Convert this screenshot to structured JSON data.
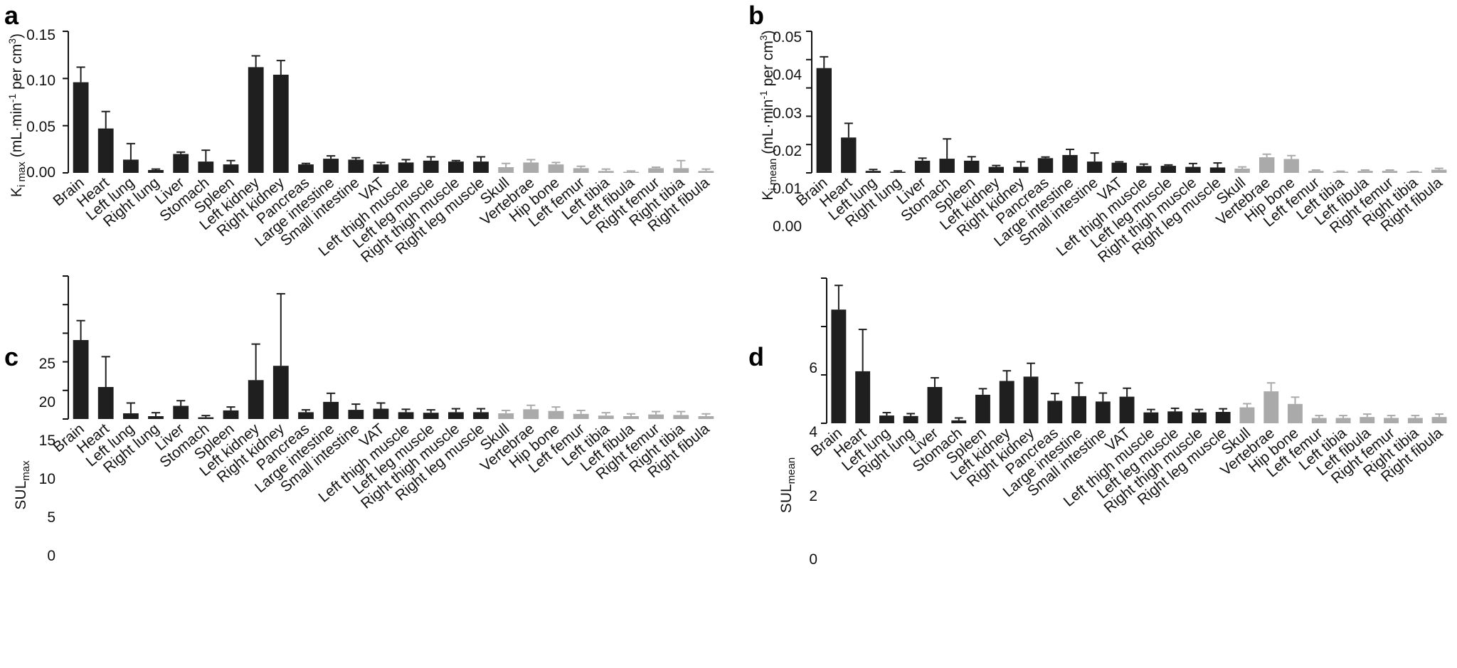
{
  "colors": {
    "tissue": "#1f1f1f",
    "bone": "#aaaaaa",
    "axis": "#111111"
  },
  "panels": [
    {
      "label": "a",
      "ylabel": {
        "main": "K",
        "sub": "i max",
        "unit_pre": "(mL·min",
        "sup1": "-1",
        "unit_mid": " per cm",
        "sup2": "3",
        "unit_post": ")"
      },
      "ytick_labels": [
        "0.00",
        "0.05",
        "0.10",
        "0.15"
      ]
    },
    {
      "label": "b",
      "ylabel": {
        "main": "K",
        "sub": "i mean",
        "unit_pre": "(mL·min",
        "sup1": "-1",
        "unit_mid": " per cm",
        "sup2": "3",
        "unit_post": ")"
      },
      "ytick_labels": [
        "0.00",
        "0.01",
        "0.02",
        "0.03",
        "0.04",
        "0.05"
      ]
    },
    {
      "label": "c",
      "ylabel": {
        "main": "SUL",
        "sub": "max"
      },
      "ytick_labels": [
        "0",
        "5",
        "10",
        "15",
        "20",
        "25"
      ]
    },
    {
      "label": "d",
      "ylabel": {
        "main": "SUL",
        "sub": "mean"
      },
      "ytick_labels": [
        "0",
        "2",
        "4",
        "6"
      ]
    }
  ],
  "chart_data": [
    {
      "type": "bar",
      "panel": "a",
      "title": "",
      "xlabel": "",
      "ylabel": "Ki max (mL·min-1 per cm3)",
      "ylim": [
        0,
        0.15
      ],
      "yticks": [
        0,
        0.05,
        0.1,
        0.15
      ],
      "categories": [
        "Brain",
        "Heart",
        "Left lung",
        "Right lung",
        "Liver",
        "Stomach",
        "Spleen",
        "Left kidney",
        "Right kidney",
        "Pancreas",
        "Large intestine",
        "Small intestine",
        "VAT",
        "Left thigh muscle",
        "Left leg muscle",
        "Right thigh muscle",
        "Right leg muscle",
        "Skull",
        "Vertebrae",
        "Hip bone",
        "Left femur",
        "Left tibia",
        "Left fibula",
        "Right femur",
        "Right tibia",
        "Right fibula"
      ],
      "values": [
        0.096,
        0.047,
        0.014,
        0.003,
        0.02,
        0.012,
        0.009,
        0.112,
        0.104,
        0.009,
        0.015,
        0.014,
        0.009,
        0.011,
        0.013,
        0.012,
        0.012,
        0.006,
        0.011,
        0.009,
        0.005,
        0.002,
        0.001,
        0.005,
        0.005,
        0.002
      ],
      "errors": [
        0.016,
        0.018,
        0.017,
        0.001,
        0.002,
        0.012,
        0.004,
        0.012,
        0.015,
        0.001,
        0.003,
        0.002,
        0.002,
        0.003,
        0.004,
        0.001,
        0.005,
        0.004,
        0.003,
        0.002,
        0.002,
        0.002,
        0.001,
        0.001,
        0.008,
        0.002
      ],
      "bone_start_index": 17
    },
    {
      "type": "bar",
      "panel": "b",
      "title": "",
      "xlabel": "",
      "ylabel": "Ki mean (mL·min-1 per cm3)",
      "ylim": [
        0,
        0.05
      ],
      "yticks": [
        0,
        0.01,
        0.02,
        0.03,
        0.04,
        0.05
      ],
      "categories": [
        "Brain",
        "Heart",
        "Left lung",
        "Right lung",
        "Liver",
        "Stomach",
        "Spleen",
        "Left kidney",
        "Right kidney",
        "Pancreas",
        "Large intestine",
        "Small intestine",
        "VAT",
        "Left thigh muscle",
        "Left leg muscle",
        "Right thigh muscle",
        "Right leg muscle",
        "Skull",
        "Vertebrae",
        "Hip bone",
        "Left femur",
        "Left tibia",
        "Left fibula",
        "Right femur",
        "Right tibia",
        "Right fibula"
      ],
      "values": [
        0.037,
        0.0125,
        0.0007,
        0.0004,
        0.0043,
        0.005,
        0.0043,
        0.0021,
        0.0021,
        0.0052,
        0.0063,
        0.004,
        0.0036,
        0.0024,
        0.0025,
        0.0021,
        0.0019,
        0.0015,
        0.0055,
        0.0049,
        0.0007,
        0.0004,
        0.0007,
        0.0007,
        0.0004,
        0.0011
      ],
      "errors": [
        0.004,
        0.005,
        0.0005,
        0.0003,
        0.0009,
        0.007,
        0.0014,
        0.0005,
        0.0018,
        0.0004,
        0.002,
        0.003,
        0.0003,
        0.0007,
        0.0003,
        0.0012,
        0.0016,
        0.0006,
        0.0011,
        0.0012,
        0.0003,
        0.0002,
        0.0003,
        0.0003,
        0.0001,
        0.0005
      ],
      "bone_start_index": 17
    },
    {
      "type": "bar",
      "panel": "c",
      "title": "",
      "xlabel": "",
      "ylabel": "SULmax",
      "ylim": [
        0,
        25
      ],
      "yticks": [
        0,
        5,
        10,
        15,
        20,
        25
      ],
      "categories": [
        "Brain",
        "Heart",
        "Left lung",
        "Right lung",
        "Liver",
        "Stomach",
        "Spleen",
        "Left kidney",
        "Right kidney",
        "Pancreas",
        "Large intestine",
        "Small intestine",
        "VAT",
        "Left thigh muscle",
        "Left leg muscle",
        "Right thigh muscle",
        "Right leg muscle",
        "Skull",
        "Vertebrae",
        "Hip bone",
        "Left femur",
        "Left tibia",
        "Left fibula",
        "Right femur",
        "Right tibia",
        "Right fibula"
      ],
      "values": [
        13.8,
        5.6,
        1.0,
        0.5,
        2.3,
        0.3,
        1.5,
        6.8,
        9.3,
        1.2,
        3.0,
        1.6,
        1.8,
        1.2,
        1.1,
        1.2,
        1.2,
        1.0,
        1.7,
        1.4,
        0.9,
        0.6,
        0.5,
        0.8,
        0.7,
        0.5
      ],
      "errors": [
        3.4,
        5.3,
        1.8,
        0.6,
        0.9,
        0.3,
        0.6,
        6.3,
        12.6,
        0.4,
        1.5,
        1.0,
        1.0,
        0.5,
        0.5,
        0.6,
        0.6,
        0.5,
        0.7,
        0.7,
        0.6,
        0.5,
        0.4,
        0.5,
        0.6,
        0.4
      ],
      "bone_start_index": 17
    },
    {
      "type": "bar",
      "panel": "d",
      "title": "",
      "xlabel": "",
      "ylabel": "SULmean",
      "ylim": [
        0,
        6
      ],
      "yticks": [
        0,
        2,
        4,
        6
      ],
      "categories": [
        "Brain",
        "Heart",
        "Left lung",
        "Right lung",
        "Liver",
        "Stomach",
        "Spleen",
        "Left kidney",
        "Right kidney",
        "Pancreas",
        "Large intestine",
        "Small intestine",
        "VAT",
        "Left thigh muscle",
        "Left leg muscle",
        "Right thigh muscle",
        "Right leg muscle",
        "Skull",
        "Vertebrae",
        "Hip bone",
        "Left femur",
        "Left tibia",
        "Left fibula",
        "Right femur",
        "Right tibia",
        "Right fibula"
      ],
      "values": [
        4.7,
        2.15,
        0.32,
        0.3,
        1.5,
        0.12,
        1.18,
        1.75,
        1.93,
        0.93,
        1.12,
        0.9,
        1.1,
        0.45,
        0.49,
        0.45,
        0.47,
        0.66,
        1.32,
        0.8,
        0.22,
        0.22,
        0.26,
        0.22,
        0.22,
        0.26
      ],
      "errors": [
        1.0,
        1.73,
        0.12,
        0.1,
        0.38,
        0.1,
        0.25,
        0.42,
        0.55,
        0.3,
        0.55,
        0.35,
        0.35,
        0.12,
        0.13,
        0.12,
        0.13,
        0.15,
        0.35,
        0.28,
        0.1,
        0.1,
        0.12,
        0.1,
        0.1,
        0.12
      ],
      "bone_start_index": 17
    }
  ]
}
